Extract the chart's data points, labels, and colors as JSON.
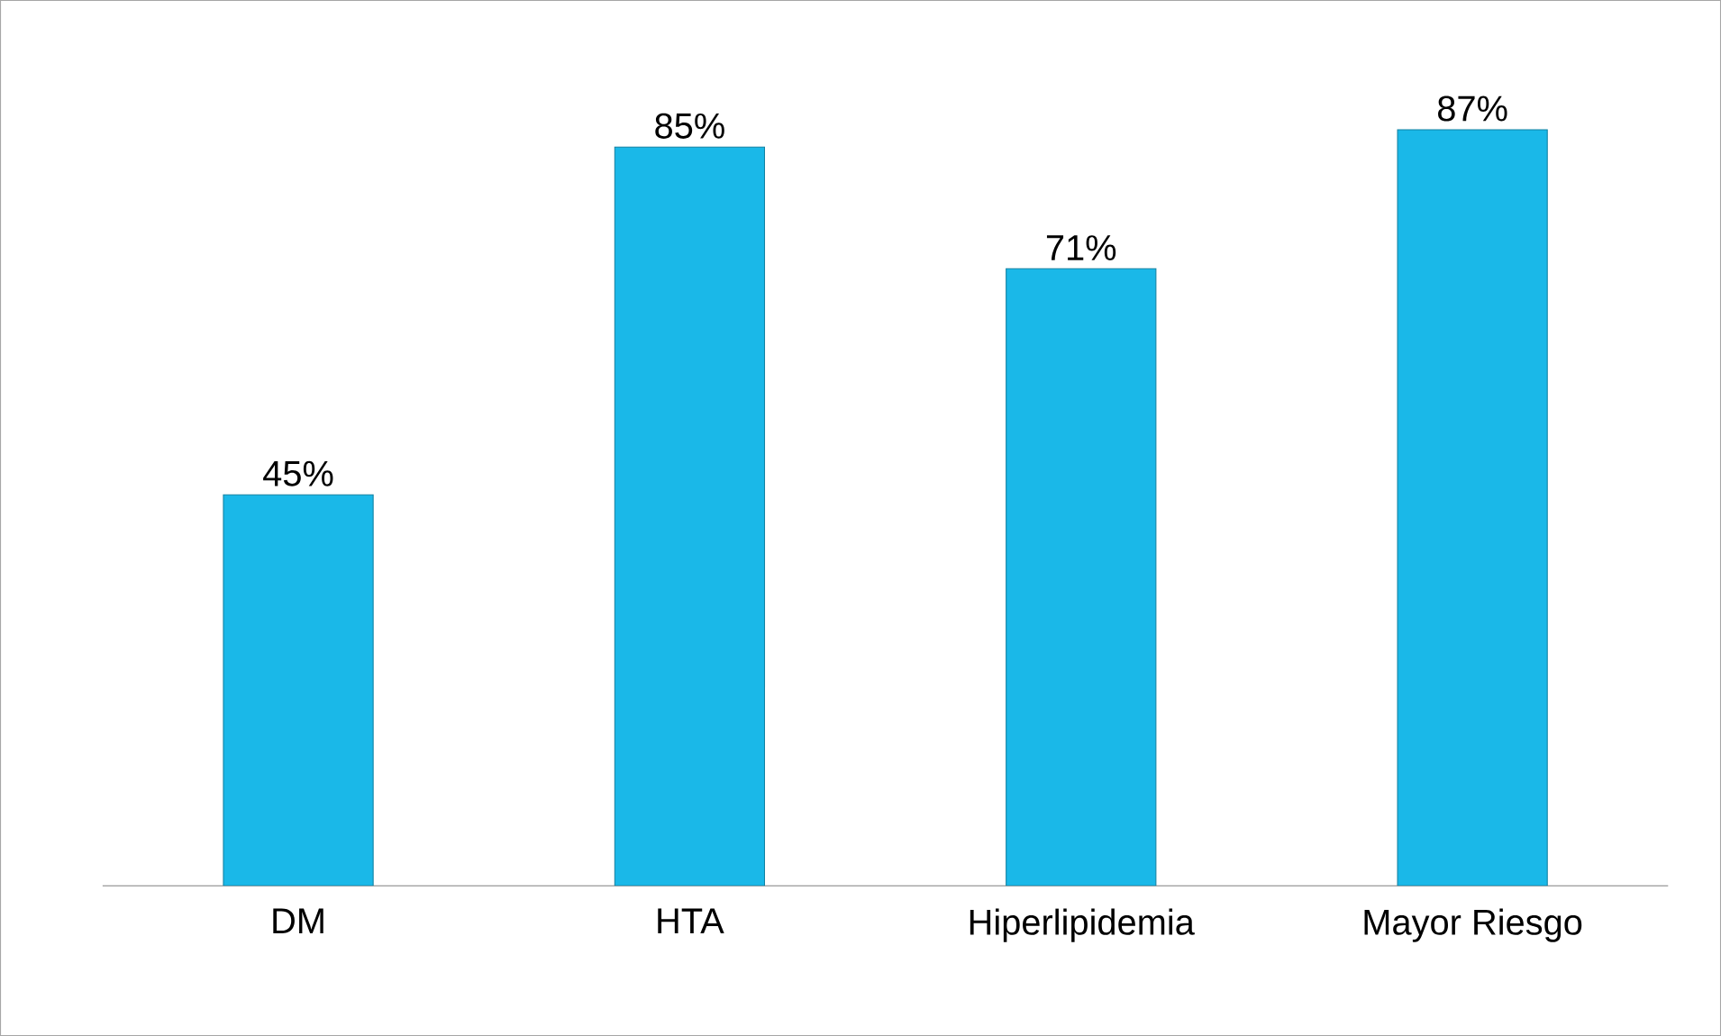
{
  "chart_data": {
    "type": "bar",
    "categories": [
      "DM",
      "HTA",
      "Hiperlipidemia",
      "Mayor Riesgo"
    ],
    "values": [
      45,
      85,
      71,
      87
    ],
    "value_labels": [
      "45%",
      "85%",
      "71%",
      "87%"
    ],
    "color": "#1ab8e8"
  }
}
